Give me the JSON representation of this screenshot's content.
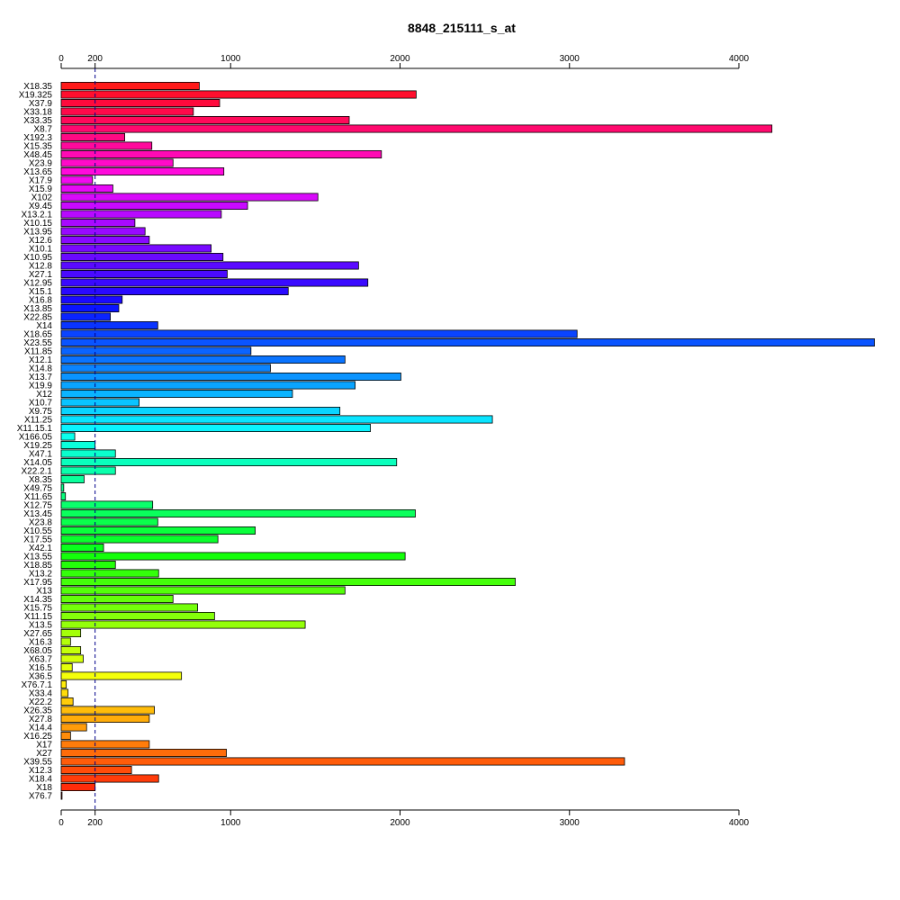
{
  "chart_data": {
    "type": "bar",
    "orientation": "horizontal",
    "title": "8848_215111_s_at",
    "xlabel": "",
    "ylabel": "",
    "xlim": [
      0,
      4800
    ],
    "x_ticks": [
      0,
      200,
      1000,
      2000,
      3000,
      4000
    ],
    "reference_line": 200,
    "grid": false,
    "legend": "none",
    "categories": [
      "X18.35",
      "X19.325",
      "X37.9",
      "X33.18",
      "X33.35",
      "X8.7",
      "X192.3",
      "X15.35",
      "X48.45",
      "X23.9",
      "X13.65",
      "X17.9",
      "X15.9",
      "X102",
      "X9.45",
      "X13.2.1",
      "X10.15",
      "X13.95",
      "X12.6",
      "X10.1",
      "X10.95",
      "X12.8",
      "X27.1",
      "X12.95",
      "X15.1",
      "X16.8",
      "X13.85",
      "X22.85",
      "X14",
      "X18.65",
      "X23.55",
      "X11.85",
      "X12.1",
      "X14.8",
      "X13.7",
      "X19.9",
      "X12",
      "X10.7",
      "X9.75",
      "X11.25",
      "X11.15.1",
      "X166.05",
      "X19.25",
      "X47.1",
      "X14.05",
      "X22.2.1",
      "X8.35",
      "X49.75",
      "X11.65",
      "X12.75",
      "X13.45",
      "X23.8",
      "X10.55",
      "X17.55",
      "X42.1",
      "X13.55",
      "X18.85",
      "X13.2",
      "X17.95",
      "X13",
      "X14.35",
      "X15.75",
      "X11.15",
      "X13.5",
      "X27.65",
      "X16.3",
      "X68.05",
      "X63.7",
      "X16.5",
      "X36.5",
      "X76.7.1",
      "X33.4",
      "X22.2",
      "X26.35",
      "X27.8",
      "X14.4",
      "X16.25",
      "X17",
      "X27",
      "X39.55",
      "X12.3",
      "X18.4",
      "X18",
      "X76.7"
    ],
    "values": [
      815,
      2095,
      935,
      780,
      1700,
      4195,
      375,
      535,
      1890,
      660,
      960,
      185,
      305,
      1515,
      1100,
      945,
      435,
      495,
      520,
      885,
      955,
      1755,
      980,
      1810,
      1340,
      360,
      340,
      290,
      570,
      3045,
      4800,
      1120,
      1675,
      1235,
      2005,
      1735,
      1365,
      460,
      1645,
      2545,
      1825,
      80,
      200,
      320,
      1980,
      320,
      135,
      15,
      25,
      540,
      2090,
      570,
      1145,
      925,
      250,
      2030,
      320,
      575,
      2680,
      1675,
      660,
      805,
      905,
      1440,
      115,
      55,
      115,
      130,
      65,
      710,
      30,
      40,
      70,
      550,
      520,
      150,
      55,
      520,
      975,
      3325,
      415,
      575,
      200,
      5
    ],
    "colors": [
      "#FF1A1A",
      "#FF0F2E",
      "#FF0A3C",
      "#FF0A4A",
      "#FF0A5A",
      "#FF0A6E",
      "#FF0A84",
      "#FF0A9C",
      "#FF0AB4",
      "#FF0AC8",
      "#FF0ADC",
      "#F20AF0",
      "#E60AF5",
      "#D80AFA",
      "#C80AFF",
      "#B80AFF",
      "#A80AFF",
      "#980AFF",
      "#880AFF",
      "#780AFF",
      "#6A0AFF",
      "#5A0AFF",
      "#4A0AFF",
      "#3A0AFF",
      "#2A0AFF",
      "#1A0AFF",
      "#0A14FF",
      "#0A24FF",
      "#0A34FF",
      "#0A44FF",
      "#0A54FF",
      "#0A64FF",
      "#0A74FF",
      "#0A84FF",
      "#0A94FF",
      "#0AA4FF",
      "#0AB4FF",
      "#0AC4FF",
      "#0AD4FF",
      "#0AE4FF",
      "#0AF4FF",
      "#0AFFEC",
      "#0AFFDC",
      "#0AFFCC",
      "#0AFFBC",
      "#0AFFAC",
      "#0AFF9C",
      "#0AFF8C",
      "#0AFF7C",
      "#0AFF6C",
      "#0AFF5C",
      "#0AFF4C",
      "#0AFF3C",
      "#0AFF2C",
      "#0AFF1C",
      "#14FF0A",
      "#24FF0A",
      "#34FF0A",
      "#44FF0A",
      "#54FF0A",
      "#64FF0A",
      "#74FF0A",
      "#84FF0A",
      "#94FF0A",
      "#A4FF0A",
      "#B4FF0A",
      "#C4FF0A",
      "#D4FF0A",
      "#E4FF0A",
      "#F4FF0A",
      "#FFEC0A",
      "#FFDC0A",
      "#FFCC0A",
      "#FFBC0A",
      "#FFAC0A",
      "#FF9C0A",
      "#FF8C0A",
      "#FF7C0A",
      "#FF6C0A",
      "#FF5C0A",
      "#FF4C0A",
      "#FF3C0A",
      "#FF2C0A",
      "#FF1C0A"
    ]
  }
}
